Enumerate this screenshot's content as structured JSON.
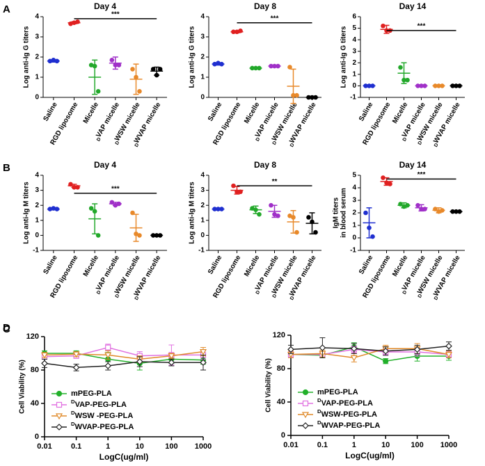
{
  "chart_data": [
    {
      "type": "dot",
      "panel": "A",
      "title": "Day 4",
      "ylabel": "Log anti-Ig G titers",
      "categories": [
        "Saline",
        "RGD liposome",
        "Micelle",
        "DVAP micelle",
        "DWSW micelle",
        "DWVAP micelle"
      ],
      "colors": [
        "#1f2fd0",
        "#e02020",
        "#22a82a",
        "#a030c8",
        "#e8892a",
        "#000000"
      ],
      "points": [
        [
          1.8,
          1.85,
          1.8
        ],
        [
          3.65,
          3.7,
          3.75
        ],
        [
          1.6,
          1.55,
          0.3
        ],
        [
          1.85,
          1.6,
          1.6
        ],
        [
          1.4,
          1.0,
          0.3
        ],
        [
          1.4,
          1.1,
          1.4
        ]
      ],
      "means": [
        1.8,
        3.7,
        1.0,
        1.7,
        0.9,
        1.3
      ],
      "sds": [
        0.05,
        0.05,
        0.85,
        0.3,
        0.75,
        0.2
      ],
      "ylim": [
        0,
        4
      ],
      "yticks": [
        0,
        1,
        2,
        3,
        4
      ],
      "significance": {
        "label": "***",
        "y": 3.9
      }
    },
    {
      "type": "dot",
      "title": "Day 8",
      "ylabel": "Log anti-Ig G titers",
      "categories": [
        "Saline",
        "RGD liposome",
        "Micelle",
        "DVAP micelle",
        "DWSW micelle",
        "DWVAP micelle"
      ],
      "colors": [
        "#1f2fd0",
        "#e02020",
        "#22a82a",
        "#a030c8",
        "#e8892a",
        "#000000"
      ],
      "points": [
        [
          1.65,
          1.7,
          1.65
        ],
        [
          3.25,
          3.25,
          3.3
        ],
        [
          1.45,
          1.45,
          1.45
        ],
        [
          1.55,
          1.55,
          1.55
        ],
        [
          1.5,
          0.1,
          0.1
        ],
        [
          0,
          0,
          0
        ]
      ],
      "means": [
        1.65,
        3.25,
        1.45,
        1.55,
        0.55,
        0
      ],
      "sds": [
        0.05,
        0.05,
        0.03,
        0.05,
        0.85,
        0
      ],
      "ylim": [
        0,
        4
      ],
      "yticks": [
        0,
        1,
        2,
        3,
        4
      ],
      "significance": {
        "label": "***",
        "y": 3.7
      }
    },
    {
      "type": "dot",
      "title": "Day 14",
      "ylabel": "Log anti-Ig G titers",
      "categories": [
        "Saline",
        "RGD liposome",
        "Micelle",
        "DVAP micelle",
        "DWSW micelle",
        "DWVAP micelle"
      ],
      "colors": [
        "#1f2fd0",
        "#e02020",
        "#22a82a",
        "#a030c8",
        "#e8892a",
        "#000000"
      ],
      "points": [
        [
          0,
          0,
          0
        ],
        [
          5.2,
          4.8,
          4.8
        ],
        [
          1.6,
          0.5,
          0.5
        ],
        [
          0,
          0,
          0
        ],
        [
          0,
          0,
          0
        ],
        [
          0,
          0,
          0
        ]
      ],
      "means": [
        0,
        4.9,
        1.1,
        0,
        0,
        0
      ],
      "sds": [
        0,
        0.35,
        0.9,
        0,
        0,
        0
      ],
      "ylim": [
        -1,
        6
      ],
      "yticks": [
        -1,
        0,
        1,
        2,
        3,
        4,
        5,
        6
      ],
      "significance": {
        "label": "***",
        "y": 4.8
      }
    },
    {
      "type": "dot",
      "panel": "B",
      "title": "Day 4",
      "ylabel": "Log anti-Ig M titers",
      "categories": [
        "Saline",
        "RGD liposome",
        "Micelle",
        "DVAP micelle",
        "DWSW micelle",
        "DWVAP micelle"
      ],
      "colors": [
        "#1f2fd0",
        "#e02020",
        "#22a82a",
        "#a030c8",
        "#e8892a",
        "#000000"
      ],
      "points": [
        [
          1.75,
          1.8,
          1.75
        ],
        [
          3.4,
          3.2,
          3.2
        ],
        [
          1.8,
          1.6,
          0
        ],
        [
          2.2,
          2.0,
          2.1
        ],
        [
          1.5,
          0.1,
          0
        ],
        [
          0,
          0,
          0
        ]
      ],
      "means": [
        1.75,
        3.3,
        1.1,
        2.1,
        0.5,
        0
      ],
      "sds": [
        0.05,
        0.1,
        1.0,
        0.1,
        0.9,
        0
      ],
      "ylim": [
        -1,
        4
      ],
      "yticks": [
        -1,
        0,
        1,
        2,
        3,
        4
      ],
      "significance": {
        "label": "***",
        "y": 2.8
      }
    },
    {
      "type": "dot",
      "title": "Day 8",
      "ylabel": "Log anti-Ig M titers",
      "categories": [
        "Saline",
        "RGD liposome",
        "Micelle",
        "DVAP micelle",
        "DWSW micelle",
        "DWVAP micelle"
      ],
      "colors": [
        "#1f2fd0",
        "#e02020",
        "#22a82a",
        "#a030c8",
        "#e8892a",
        "#000000"
      ],
      "points": [
        [
          1.75,
          1.75,
          1.75
        ],
        [
          3.3,
          2.9,
          2.9
        ],
        [
          1.8,
          1.7,
          1.4
        ],
        [
          2.0,
          1.4,
          1.3
        ],
        [
          1.3,
          1.2,
          0.2
        ],
        [
          1.2,
          0.9,
          0.2
        ]
      ],
      "means": [
        1.75,
        3.0,
        1.7,
        1.6,
        0.9,
        0.8
      ],
      "sds": [
        0.03,
        0.25,
        0.25,
        0.4,
        0.75,
        0.7
      ],
      "ylim": [
        -1,
        4
      ],
      "yticks": [
        -1,
        0,
        1,
        2,
        3,
        4
      ],
      "significance": {
        "label": "**",
        "y": 3.3
      }
    },
    {
      "type": "dot",
      "title": "Day 14",
      "ylabel": [
        "IgM titers",
        "in blood serum"
      ],
      "categories": [
        "Saline",
        "RGD liposome",
        "Micelle",
        "DVAP micelle",
        "DWSW micelle",
        "DWVAP micelle"
      ],
      "colors": [
        "#1f2fd0",
        "#e02020",
        "#22a82a",
        "#a030c8",
        "#e8892a",
        "#000000"
      ],
      "points": [
        [
          2.0,
          0.8,
          0.1
        ],
        [
          4.8,
          4.4,
          4.3
        ],
        [
          2.7,
          2.5,
          2.6
        ],
        [
          2.6,
          2.3,
          2.3
        ],
        [
          2.3,
          2.1,
          2.2
        ],
        [
          2.1,
          2.1,
          2.1
        ]
      ],
      "means": [
        1.2,
        4.5,
        2.6,
        2.4,
        2.2,
        2.1
      ],
      "sds": [
        1.2,
        0.3,
        0.2,
        0.25,
        0.2,
        0
      ],
      "ylim": [
        -1,
        5
      ],
      "yticks": [
        -1,
        0,
        1,
        2,
        3,
        4,
        5
      ],
      "significance": {
        "label": "***",
        "y": 4.7
      }
    },
    {
      "type": "line",
      "panel": "C",
      "xlabel": "LogC(ug/ml)",
      "ylabel": "Cell Viability (%)",
      "log_x": true,
      "legend": "lower left",
      "x": [
        0.01,
        0.1,
        1,
        10,
        100,
        1000
      ],
      "xlim": [
        0.01,
        1000
      ],
      "xticks": [
        0.01,
        0.1,
        1,
        10,
        100,
        1000
      ],
      "ylim": [
        0,
        120
      ],
      "yticks": [
        0,
        40,
        80,
        120
      ],
      "series": [
        {
          "name": "mPEG-PLA",
          "color": "#22b02a",
          "marker": "circle",
          "values": [
            100,
            100,
            93,
            88,
            93,
            92
          ],
          "errors": [
            3,
            3,
            8,
            8,
            5,
            5
          ]
        },
        {
          "name": "DVAP-PEG-PLA",
          "color": "#e070e0",
          "marker": "square",
          "values": [
            96,
            97,
            107,
            97,
            98,
            98
          ],
          "errors": [
            3,
            3,
            4,
            5,
            12,
            5
          ]
        },
        {
          "name": "DWSW -PEG-PLA",
          "color": "#e08a2a",
          "marker": "triangle",
          "values": [
            98,
            99,
            98,
            93,
            97,
            102
          ],
          "errors": [
            3,
            3,
            5,
            4,
            3,
            5
          ]
        },
        {
          "name": "DWVAP-PEG-PLA",
          "color": "#222222",
          "marker": "diamond",
          "values": [
            88,
            83,
            85,
            90,
            89,
            89
          ],
          "errors": [
            5,
            4,
            5,
            6,
            4,
            9
          ]
        }
      ]
    },
    {
      "type": "line",
      "panel": "D",
      "xlabel": "LogC(ug/ml)",
      "ylabel": "Cell Viability (%)",
      "log_x": true,
      "legend": "lower left",
      "x": [
        0.01,
        0.1,
        1,
        10,
        100,
        1000
      ],
      "xlim": [
        0.01,
        1000
      ],
      "xticks": [
        0.01,
        0.1,
        1,
        10,
        100,
        1000
      ],
      "ylim": [
        0,
        120
      ],
      "yticks": [
        0,
        40,
        80,
        120
      ],
      "series": [
        {
          "name": "mPEG-PLA",
          "color": "#22b02a",
          "marker": "circle",
          "values": [
            97,
            96,
            106,
            89,
            95,
            95
          ],
          "errors": [
            3,
            3,
            5,
            3,
            6,
            5
          ]
        },
        {
          "name": "DVAP-PEG-PLA",
          "color": "#e070e0",
          "marker": "square",
          "values": [
            97,
            97,
            103,
            100,
            100,
            97
          ],
          "errors": [
            3,
            3,
            4,
            4,
            5,
            4
          ]
        },
        {
          "name": "DWSW-PEG-PLA",
          "color": "#e08a2a",
          "marker": "triangle",
          "values": [
            97,
            98,
            93,
            104,
            104,
            97
          ],
          "errors": [
            4,
            4,
            5,
            4,
            6,
            4
          ]
        },
        {
          "name": "DWVAP-PEG-PLA",
          "color": "#222222",
          "marker": "diamond",
          "values": [
            103,
            105,
            104,
            101,
            103,
            107
          ],
          "errors": [
            5,
            12,
            6,
            5,
            5,
            5
          ]
        }
      ]
    }
  ]
}
